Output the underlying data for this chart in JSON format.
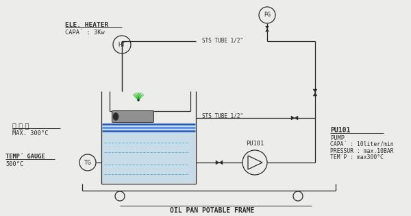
{
  "bg_color": "#ececea",
  "line_color": "#2a2a2a",
  "title_bottom": "OIL PAN POTABLE FRAME",
  "label_heater": "ELE. HEATER",
  "label_heater2": "CAPA´ : 3Kw",
  "label_ht": "HT",
  "label_pg": "PG",
  "label_tg": "TG",
  "label_pu101_tag": "PU101",
  "label_oil": "열 매 유",
  "label_oil2": "MAX. 300°C",
  "label_temp_gauge": "TEMP´ GAUGE",
  "label_temp_gauge2": "500°C",
  "label_sts1": "STS TUBE 1/2\"",
  "label_sts2": "STS TUBE 1/2\"",
  "label_pu101_info": "PU101",
  "label_pump": "PUMP",
  "label_capa": "CAPA´ : 10liter/min",
  "label_pressur": "PRESSUR : max.10BAR",
  "label_temp": "TEM´P : max300°C",
  "spray_color": "#00bb00",
  "oil_color": "#55aacc",
  "oil_fill_color": "#aacfe8",
  "blue_band_color": "#2255bb",
  "blue_band2_color": "#4488ee"
}
